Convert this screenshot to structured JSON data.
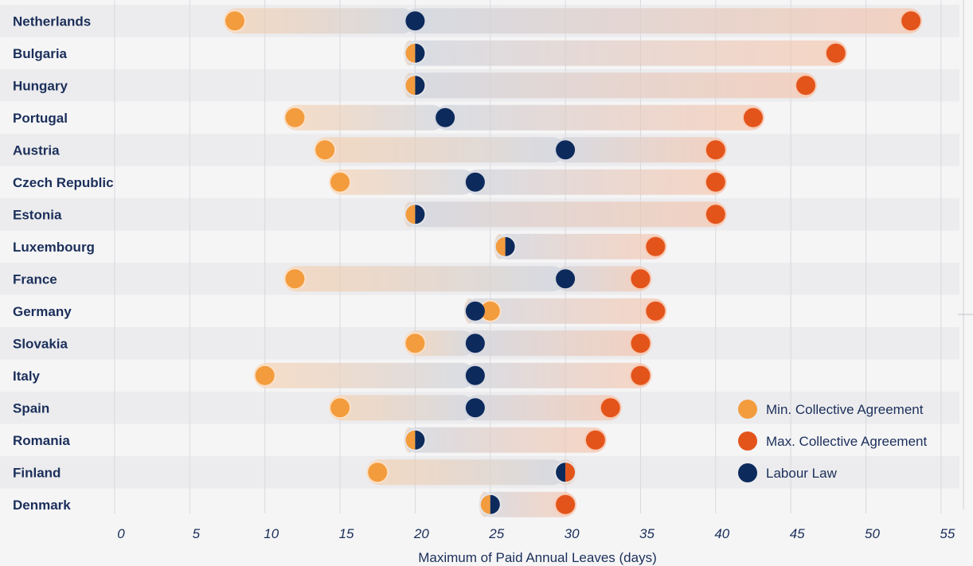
{
  "chart_data": {
    "type": "dumbbell",
    "xlabel": "Maximum of Paid Annual Leaves (days)",
    "xlim": [
      0,
      55
    ],
    "xticks": [
      0,
      5,
      10,
      15,
      20,
      25,
      30,
      35,
      40,
      45,
      50,
      55
    ],
    "grid": true,
    "legend_position": "bottom-right",
    "series": [
      {
        "key": "min",
        "name": "Min. Collective Agreement",
        "color": "#f39c3e"
      },
      {
        "key": "max",
        "name": "Max. Collective Agreement",
        "color": "#e3541b"
      },
      {
        "key": "law",
        "name": "Labour Law",
        "color": "#0d2a5c"
      }
    ],
    "rows": [
      {
        "country": "Netherlands",
        "min": 8,
        "max": 53,
        "law": 20
      },
      {
        "country": "Bulgaria",
        "min": 20,
        "max": 48,
        "law": 20
      },
      {
        "country": "Hungary",
        "min": 20,
        "max": 46,
        "law": 20
      },
      {
        "country": "Portugal",
        "min": 12,
        "max": 42.5,
        "law": 22
      },
      {
        "country": "Austria",
        "min": 14,
        "max": 40,
        "law": 30
      },
      {
        "country": "Czech Republic",
        "min": 15,
        "max": 40,
        "law": 24
      },
      {
        "country": "Estonia",
        "min": 20,
        "max": 40,
        "law": 20
      },
      {
        "country": "Luxembourg",
        "min": 26,
        "max": 36,
        "law": 26
      },
      {
        "country": "France",
        "min": 12,
        "max": 35,
        "law": 30
      },
      {
        "country": "Germany",
        "min": 25,
        "max": 36,
        "law": 24
      },
      {
        "country": "Slovakia",
        "min": 20,
        "max": 35,
        "law": 24
      },
      {
        "country": "Italy",
        "min": 10,
        "max": 35,
        "law": 24
      },
      {
        "country": "Spain",
        "min": 15,
        "max": 33,
        "law": 24
      },
      {
        "country": "Romania",
        "min": 20,
        "max": 32,
        "law": 20
      },
      {
        "country": "Finland",
        "min": 17.5,
        "max": 30,
        "law": 30
      },
      {
        "country": "Denmark",
        "min": 25,
        "max": 30,
        "law": 25
      }
    ]
  }
}
